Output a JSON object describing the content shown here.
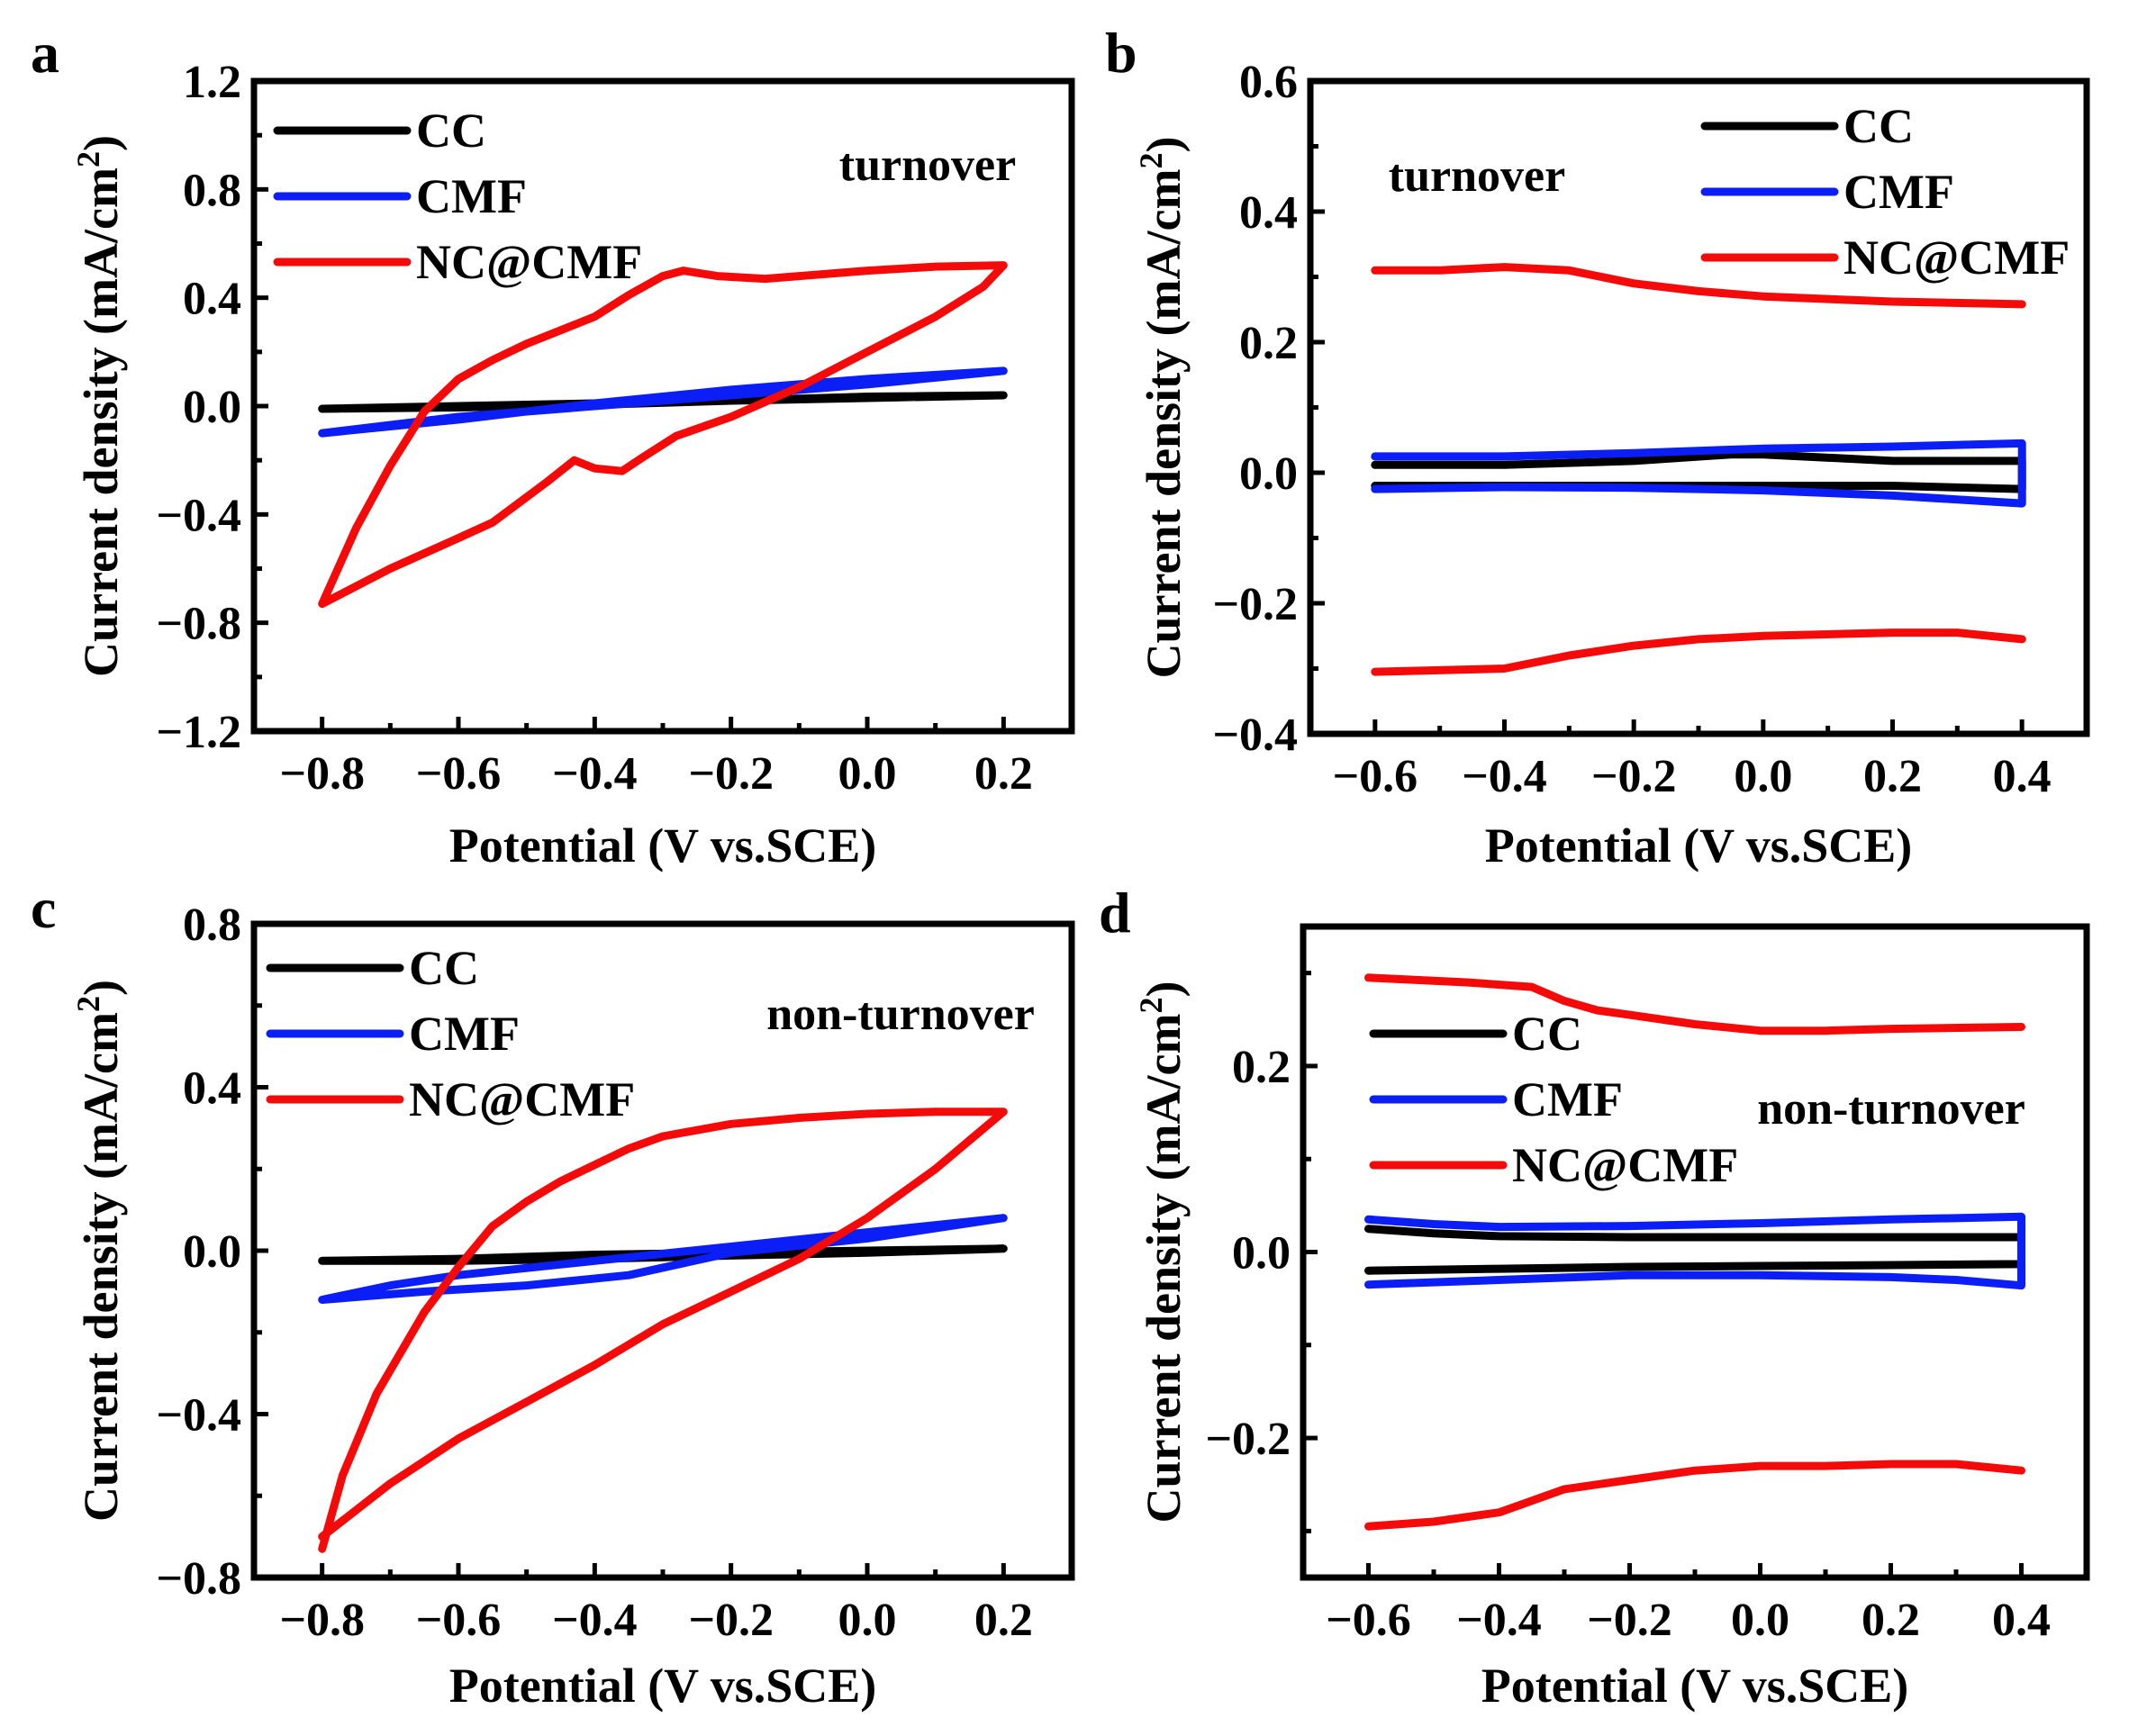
{
  "colors": {
    "CC": "#000000",
    "CMF": "#0a1ef5",
    "NC@CMF": "#f50a0a"
  },
  "chart_data": [
    {
      "panel": "a",
      "type": "line",
      "annotation": "turnover",
      "xlabel": "Potential (V vs.SCE)",
      "ylabel": "Current density (mA/cm2)",
      "ylabel_parts": [
        "Current density (mA/cm",
        "2",
        ")"
      ],
      "xlim": [
        -0.9,
        0.3
      ],
      "ylim": [
        -1.2,
        1.2
      ],
      "xticks": [
        -0.8,
        -0.6,
        -0.4,
        -0.2,
        0.0,
        0.2
      ],
      "xtick_labels": [
        "−0.8",
        "−0.6",
        "−0.4",
        "−0.2",
        "0.0",
        "0.2"
      ],
      "yticks": [
        -1.2,
        -0.8,
        -0.4,
        0.0,
        0.4,
        0.8,
        1.2
      ],
      "ytick_labels": [
        "−1.2",
        "−0.8",
        "−0.4",
        "0.0",
        "0.4",
        "0.8",
        "1.2"
      ],
      "legend": [
        "CC",
        "CMF",
        "NC@CMF"
      ],
      "series": [
        {
          "name": "CC",
          "points": [
            [
              -0.8,
              -0.01
            ],
            [
              -0.6,
              0.0
            ],
            [
              -0.4,
              0.01
            ],
            [
              -0.2,
              0.02
            ],
            [
              0.0,
              0.035
            ],
            [
              0.2,
              0.04
            ],
            [
              0.0,
              0.03
            ],
            [
              -0.2,
              0.02
            ],
            [
              -0.4,
              0.005
            ],
            [
              -0.6,
              -0.005
            ],
            [
              -0.8,
              -0.01
            ]
          ]
        },
        {
          "name": "CMF",
          "points": [
            [
              -0.8,
              -0.1
            ],
            [
              -0.6,
              -0.04
            ],
            [
              -0.4,
              0.0
            ],
            [
              -0.2,
              0.04
            ],
            [
              0.0,
              0.08
            ],
            [
              0.2,
              0.13
            ],
            [
              0.0,
              0.1
            ],
            [
              -0.2,
              0.06
            ],
            [
              -0.4,
              0.01
            ],
            [
              -0.6,
              -0.05
            ],
            [
              -0.8,
              -0.1
            ]
          ]
        },
        {
          "name": "NC@CMF",
          "points": [
            [
              -0.8,
              -0.73
            ],
            [
              -0.75,
              -0.45
            ],
            [
              -0.7,
              -0.22
            ],
            [
              -0.65,
              -0.02
            ],
            [
              -0.6,
              0.1
            ],
            [
              -0.55,
              0.17
            ],
            [
              -0.5,
              0.23
            ],
            [
              -0.45,
              0.28
            ],
            [
              -0.4,
              0.33
            ],
            [
              -0.35,
              0.41
            ],
            [
              -0.3,
              0.48
            ],
            [
              -0.27,
              0.5
            ],
            [
              -0.22,
              0.48
            ],
            [
              -0.15,
              0.47
            ],
            [
              -0.1,
              0.48
            ],
            [
              -0.05,
              0.49
            ],
            [
              0.0,
              0.5
            ],
            [
              0.1,
              0.515
            ],
            [
              0.2,
              0.52
            ],
            [
              0.17,
              0.44
            ],
            [
              0.1,
              0.33
            ],
            [
              0.0,
              0.2
            ],
            [
              -0.1,
              0.07
            ],
            [
              -0.2,
              -0.04
            ],
            [
              -0.28,
              -0.11
            ],
            [
              -0.33,
              -0.19
            ],
            [
              -0.36,
              -0.24
            ],
            [
              -0.4,
              -0.23
            ],
            [
              -0.43,
              -0.2
            ],
            [
              -0.47,
              -0.28
            ],
            [
              -0.55,
              -0.43
            ],
            [
              -0.62,
              -0.51
            ],
            [
              -0.7,
              -0.6
            ],
            [
              -0.8,
              -0.73
            ]
          ]
        }
      ]
    },
    {
      "panel": "b",
      "type": "line",
      "annotation": "turnover",
      "xlabel": "Potential (V vs.SCE)",
      "ylabel": "Current density (mA/cm2)",
      "ylabel_parts": [
        "Current density (mA/cm",
        "2",
        ")"
      ],
      "xlim": [
        -0.7,
        0.5
      ],
      "ylim": [
        -0.4,
        0.6
      ],
      "xticks": [
        -0.6,
        -0.4,
        -0.2,
        0.0,
        0.2,
        0.4
      ],
      "xtick_labels": [
        "−0.6",
        "−0.4",
        "−0.2",
        "0.0",
        "0.2",
        "0.4"
      ],
      "yticks": [
        -0.4,
        -0.2,
        0.0,
        0.2,
        0.4,
        0.6
      ],
      "ytick_labels": [
        "−0.4",
        "−0.2",
        "0.0",
        "0.2",
        "0.4",
        "0.6"
      ],
      "legend": [
        "CC",
        "CMF",
        "NC@CMF"
      ],
      "series": [
        {
          "name": "CC",
          "points": [
            [
              -0.6,
              0.012
            ],
            [
              -0.4,
              0.012
            ],
            [
              -0.2,
              0.018
            ],
            [
              -0.05,
              0.028
            ],
            [
              0.0,
              0.028
            ],
            [
              0.2,
              0.018
            ],
            [
              0.4,
              0.018
            ],
            [
              0.4,
              -0.025
            ],
            [
              0.2,
              -0.02
            ],
            [
              0.0,
              -0.02
            ],
            [
              -0.2,
              -0.02
            ],
            [
              -0.4,
              -0.02
            ],
            [
              -0.6,
              -0.02
            ]
          ]
        },
        {
          "name": "CMF",
          "points": [
            [
              -0.6,
              0.025
            ],
            [
              -0.4,
              0.025
            ],
            [
              -0.2,
              0.03
            ],
            [
              0.0,
              0.037
            ],
            [
              0.2,
              0.04
            ],
            [
              0.4,
              0.045
            ],
            [
              0.4,
              -0.047
            ],
            [
              0.2,
              -0.035
            ],
            [
              0.0,
              -0.027
            ],
            [
              -0.2,
              -0.023
            ],
            [
              -0.4,
              -0.022
            ],
            [
              -0.6,
              -0.025
            ]
          ]
        },
        {
          "name": "NC@CMF",
          "points": [
            [
              -0.6,
              0.31
            ],
            [
              -0.5,
              0.31
            ],
            [
              -0.4,
              0.315
            ],
            [
              -0.3,
              0.31
            ],
            [
              -0.2,
              0.29
            ],
            [
              -0.1,
              0.278
            ],
            [
              0.0,
              0.27
            ],
            [
              0.2,
              0.262
            ],
            [
              0.4,
              0.258
            ]
          ]
        },
        {
          "name": "NC@CMF",
          "points": [
            [
              -0.6,
              -0.305
            ],
            [
              -0.4,
              -0.3
            ],
            [
              -0.3,
              -0.28
            ],
            [
              -0.2,
              -0.265
            ],
            [
              -0.1,
              -0.255
            ],
            [
              0.0,
              -0.25
            ],
            [
              0.2,
              -0.245
            ],
            [
              0.3,
              -0.245
            ],
            [
              0.4,
              -0.255
            ]
          ]
        }
      ]
    },
    {
      "panel": "c",
      "type": "line",
      "annotation": "non-turnover",
      "xlabel": "Potential (V vs.SCE)",
      "ylabel": "Current density (mA/cm2)",
      "ylabel_parts": [
        "Current density (mA/cm",
        "2",
        ")"
      ],
      "xlim": [
        -0.9,
        0.3
      ],
      "ylim": [
        -0.8,
        0.8
      ],
      "xticks": [
        -0.8,
        -0.6,
        -0.4,
        -0.2,
        0.0,
        0.2
      ],
      "xtick_labels": [
        "−0.8",
        "−0.6",
        "−0.4",
        "−0.2",
        "0.0",
        "0.2"
      ],
      "yticks": [
        -0.8,
        -0.4,
        0.0,
        0.4,
        0.8
      ],
      "ytick_labels": [
        "−0.8",
        "−0.4",
        "0.0",
        "0.4",
        "0.8"
      ],
      "legend": [
        "CC",
        "CMF",
        "NC@CMF"
      ],
      "series": [
        {
          "name": "CC",
          "points": [
            [
              -0.8,
              -0.025
            ],
            [
              -0.6,
              -0.02
            ],
            [
              -0.4,
              -0.01
            ],
            [
              -0.2,
              -0.005
            ],
            [
              0.0,
              0.0
            ],
            [
              0.2,
              0.005
            ],
            [
              0.0,
              -0.005
            ],
            [
              -0.2,
              -0.012
            ],
            [
              -0.4,
              -0.02
            ],
            [
              -0.6,
              -0.025
            ],
            [
              -0.8,
              -0.025
            ]
          ]
        },
        {
          "name": "CMF",
          "points": [
            [
              -0.8,
              -0.12
            ],
            [
              -0.7,
              -0.085
            ],
            [
              -0.6,
              -0.06
            ],
            [
              -0.4,
              -0.025
            ],
            [
              -0.2,
              0.01
            ],
            [
              0.0,
              0.045
            ],
            [
              0.2,
              0.08
            ],
            [
              0.0,
              0.03
            ],
            [
              -0.2,
              -0.005
            ],
            [
              -0.35,
              -0.06
            ],
            [
              -0.5,
              -0.085
            ],
            [
              -0.65,
              -0.1
            ],
            [
              -0.8,
              -0.12
            ]
          ]
        },
        {
          "name": "NC@CMF",
          "points": [
            [
              -0.8,
              -0.73
            ],
            [
              -0.77,
              -0.55
            ],
            [
              -0.72,
              -0.35
            ],
            [
              -0.65,
              -0.15
            ],
            [
              -0.6,
              -0.04
            ],
            [
              -0.55,
              0.06
            ],
            [
              -0.5,
              0.12
            ],
            [
              -0.45,
              0.17
            ],
            [
              -0.4,
              0.21
            ],
            [
              -0.35,
              0.25
            ],
            [
              -0.3,
              0.28
            ],
            [
              -0.2,
              0.31
            ],
            [
              -0.1,
              0.325
            ],
            [
              0.0,
              0.335
            ],
            [
              0.1,
              0.34
            ],
            [
              0.2,
              0.34
            ],
            [
              0.15,
              0.27
            ],
            [
              0.1,
              0.2
            ],
            [
              0.0,
              0.08
            ],
            [
              -0.1,
              -0.02
            ],
            [
              -0.2,
              -0.1
            ],
            [
              -0.3,
              -0.18
            ],
            [
              -0.4,
              -0.28
            ],
            [
              -0.5,
              -0.37
            ],
            [
              -0.6,
              -0.46
            ],
            [
              -0.7,
              -0.57
            ],
            [
              -0.8,
              -0.7
            ]
          ]
        }
      ]
    },
    {
      "panel": "d",
      "type": "line",
      "annotation": "non-turnover",
      "xlabel": "Potential (V vs.SCE)",
      "ylabel": "Current density (mA/cm2)",
      "ylabel_parts": [
        "Current density (mA/cm",
        "2",
        ")"
      ],
      "xlim": [
        -0.7,
        0.5
      ],
      "ylim": [
        -0.35,
        0.35
      ],
      "xticks": [
        -0.6,
        -0.4,
        -0.2,
        0.0,
        0.2,
        0.4
      ],
      "xtick_labels": [
        "−0.6",
        "−0.4",
        "−0.2",
        "0.0",
        "0.2",
        "0.4"
      ],
      "yticks": [
        -0.2,
        0.0,
        0.2
      ],
      "ytick_labels": [
        "−0.2",
        "0.0",
        "0.2"
      ],
      "legend": [
        "CC",
        "CMF",
        "NC@CMF"
      ],
      "series": [
        {
          "name": "CC",
          "points": [
            [
              -0.6,
              0.025
            ],
            [
              -0.5,
              0.02
            ],
            [
              -0.4,
              0.017
            ],
            [
              -0.2,
              0.016
            ],
            [
              0.0,
              0.016
            ],
            [
              0.2,
              0.016
            ],
            [
              0.4,
              0.016
            ],
            [
              0.4,
              -0.013
            ],
            [
              0.2,
              -0.014
            ],
            [
              0.0,
              -0.015
            ],
            [
              -0.2,
              -0.016
            ],
            [
              -0.4,
              -0.018
            ],
            [
              -0.6,
              -0.02
            ]
          ]
        },
        {
          "name": "CMF",
          "points": [
            [
              -0.6,
              0.035
            ],
            [
              -0.5,
              0.03
            ],
            [
              -0.4,
              0.027
            ],
            [
              -0.2,
              0.028
            ],
            [
              0.0,
              0.031
            ],
            [
              0.2,
              0.035
            ],
            [
              0.4,
              0.038
            ],
            [
              0.4,
              -0.036
            ],
            [
              0.3,
              -0.03
            ],
            [
              0.2,
              -0.027
            ],
            [
              0.0,
              -0.025
            ],
            [
              -0.2,
              -0.025
            ],
            [
              -0.4,
              -0.03
            ],
            [
              -0.6,
              -0.035
            ]
          ]
        },
        {
          "name": "NC@CMF",
          "points": [
            [
              -0.6,
              0.295
            ],
            [
              -0.45,
              0.29
            ],
            [
              -0.35,
              0.285
            ],
            [
              -0.3,
              0.27
            ],
            [
              -0.25,
              0.26
            ],
            [
              -0.2,
              0.255
            ],
            [
              -0.1,
              0.245
            ],
            [
              0.0,
              0.238
            ],
            [
              0.1,
              0.238
            ],
            [
              0.2,
              0.24
            ],
            [
              0.4,
              0.242
            ]
          ]
        },
        {
          "name": "NC@CMF",
          "points": [
            [
              -0.6,
              -0.295
            ],
            [
              -0.5,
              -0.29
            ],
            [
              -0.4,
              -0.28
            ],
            [
              -0.3,
              -0.255
            ],
            [
              -0.2,
              -0.245
            ],
            [
              -0.1,
              -0.235
            ],
            [
              0.0,
              -0.23
            ],
            [
              0.1,
              -0.23
            ],
            [
              0.2,
              -0.228
            ],
            [
              0.3,
              -0.228
            ],
            [
              0.4,
              -0.235
            ]
          ]
        }
      ]
    }
  ]
}
